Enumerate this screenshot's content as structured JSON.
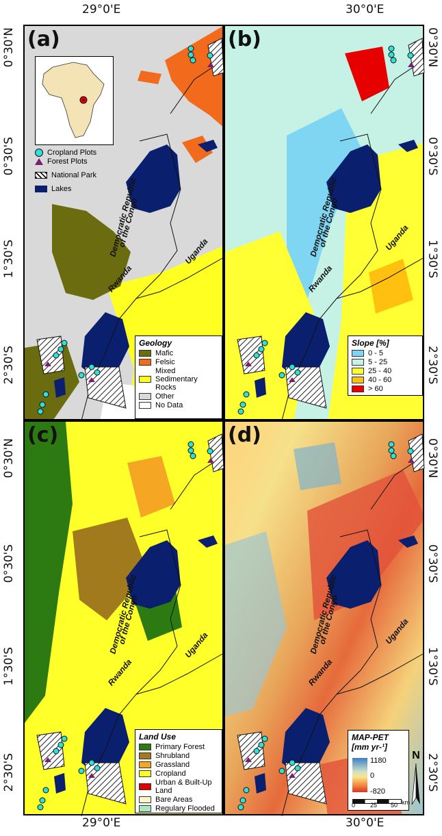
{
  "axes": {
    "lon_labels": [
      "29°0'E",
      "30°0'E"
    ],
    "lat_labels": [
      "0°30'N",
      "0°30'S",
      "1°30'S",
      "2°30'S"
    ]
  },
  "panels": {
    "a": {
      "label": "(a)"
    },
    "b": {
      "label": "(b)"
    },
    "c": {
      "label": "(c)"
    },
    "d": {
      "label": "(d)"
    }
  },
  "countries": {
    "drc_line1": "Democratic Republic",
    "drc_line2": "of  the  Congo",
    "uganda": "Uganda",
    "rwanda": "Rwanda"
  },
  "inset_legend": {
    "cropland": "Cropland Plots",
    "forest": "Forest Plots",
    "park": "National Park",
    "lakes": "Lakes"
  },
  "geology_legend": {
    "title": "Geology",
    "items": [
      {
        "label": "Mafic",
        "color": "#6b6b10"
      },
      {
        "label": "Felsic",
        "color": "#f26a1b"
      },
      {
        "label": "Mixed Sedimentary Rocks",
        "color": "#ffff22"
      },
      {
        "label": "Other",
        "color": "#d9d9d9"
      },
      {
        "label": "No Data",
        "color": "#ffffff"
      }
    ]
  },
  "slope_legend": {
    "title": "Slope [%]",
    "items": [
      {
        "label": "0 - 5",
        "color": "#7fd6f3"
      },
      {
        "label": "5 - 25",
        "color": "#c6f2e6"
      },
      {
        "label": "25 - 40",
        "color": "#ffff33"
      },
      {
        "label": "40 - 60",
        "color": "#ffc010"
      },
      {
        "label": "> 60",
        "color": "#e60000"
      }
    ]
  },
  "landuse_legend": {
    "title": "Land Use",
    "items": [
      {
        "label": "Primary Forest",
        "color": "#2d7a12"
      },
      {
        "label": "Shrubland",
        "color": "#a07a1c"
      },
      {
        "label": "Grassland",
        "color": "#f5a623"
      },
      {
        "label": "Cropland",
        "color": "#ffff2a"
      },
      {
        "label": "Urban & Built-Up Land",
        "color": "#e00000"
      },
      {
        "label": "Bare Areas",
        "color": "#fdf5c9"
      },
      {
        "label": "Regulary Flooded",
        "color": "#a8e8c2"
      }
    ]
  },
  "mappet_legend": {
    "title_line1": "MAP-PET",
    "title_line2": "[mm yr-¹]",
    "max": "1180",
    "mid": "0",
    "min": "-820"
  },
  "scalebar": {
    "t0": "0",
    "t1": "25",
    "t2": "50",
    "unit": "km"
  },
  "north": "N"
}
